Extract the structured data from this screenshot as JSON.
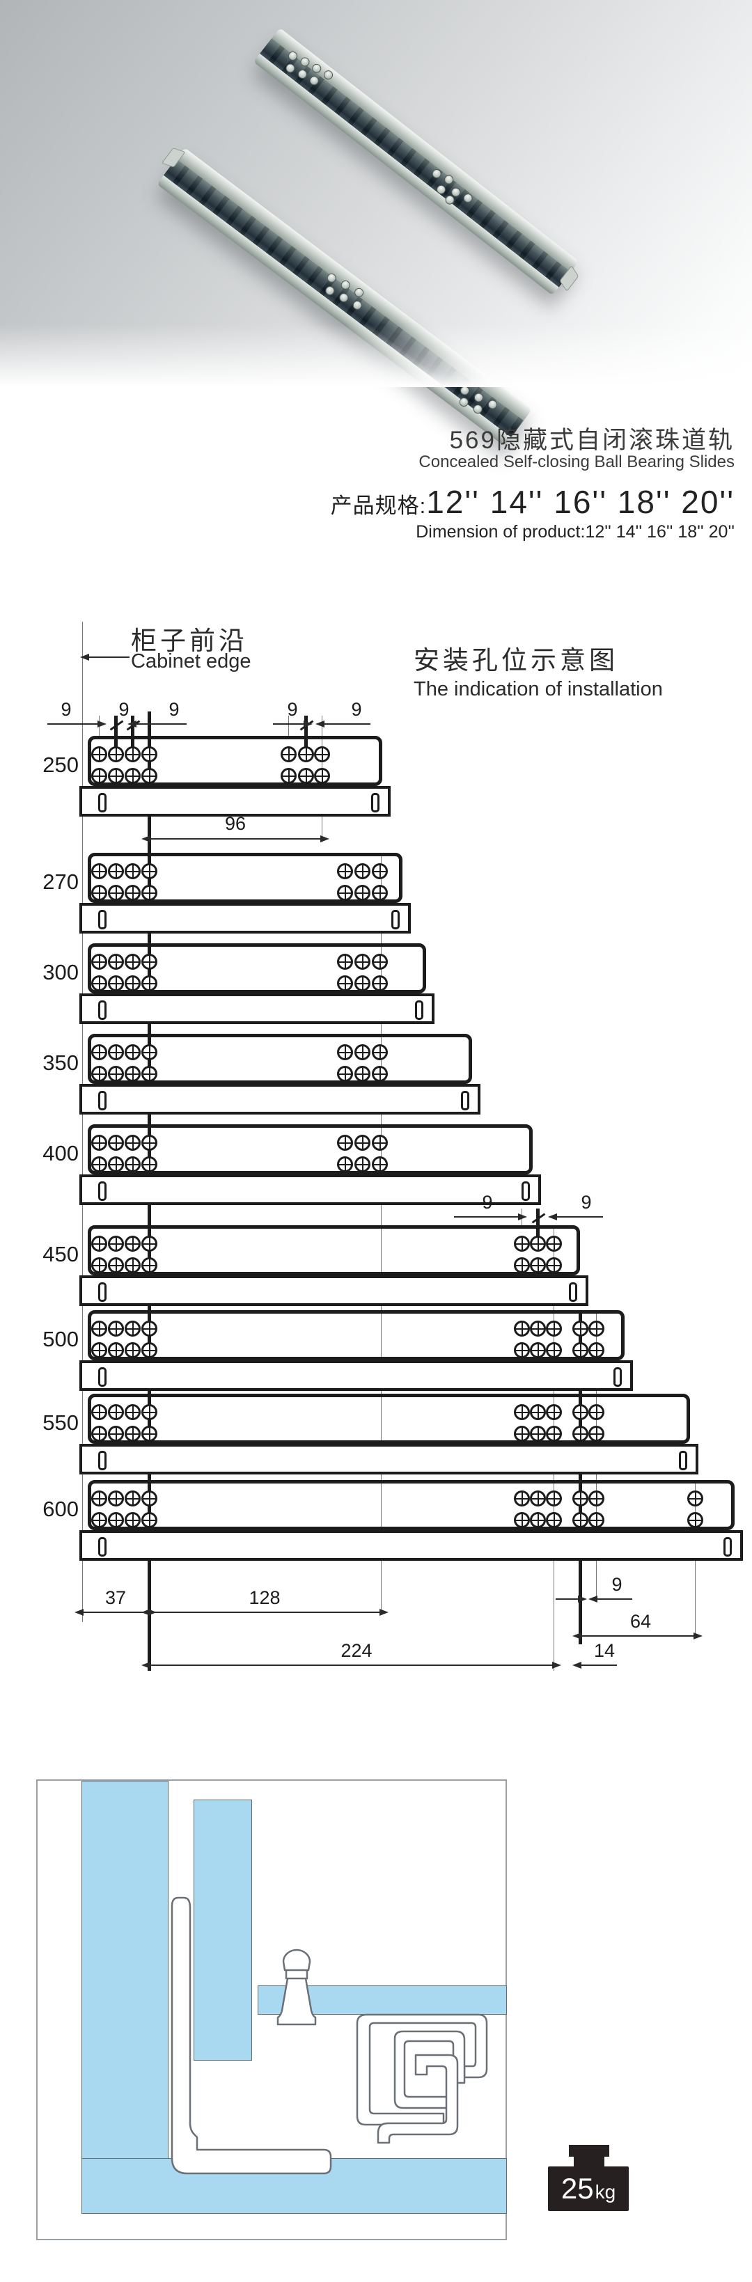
{
  "product": {
    "title_zh": "569隐藏式自闭滚珠道轨",
    "title_en": "Concealed Self-closing Ball Bearing Slides",
    "spec_label_zh": "产品规格:",
    "spec_sizes": "12'' 14'' 16'' 18'' 20''",
    "spec_label_en": "Dimension of product:",
    "spec_sizes_en": "12'' 14'' 16'' 18'' 20''"
  },
  "installation": {
    "cabinet_edge_zh": "柜子前沿",
    "cabinet_edge_en": "Cabinet edge",
    "heading_zh": "安装孔位示意图",
    "heading_en": "The indication of installation",
    "rows": [
      {
        "label": "250",
        "left_holes": 4,
        "right_groups": [
          3
        ]
      },
      {
        "label": "270",
        "left_holes": 4,
        "right_groups": [
          3
        ]
      },
      {
        "label": "300",
        "left_holes": 4,
        "right_groups": [
          3
        ]
      },
      {
        "label": "350",
        "left_holes": 4,
        "right_groups": [
          3
        ]
      },
      {
        "label": "400",
        "left_holes": 4,
        "right_groups": [
          3
        ]
      },
      {
        "label": "450",
        "left_holes": 4,
        "right_groups": [
          3
        ]
      },
      {
        "label": "500",
        "left_holes": 4,
        "right_groups": [
          3,
          2
        ]
      },
      {
        "label": "550",
        "left_holes": 4,
        "right_groups": [
          3,
          2
        ]
      },
      {
        "label": "600",
        "left_holes": 4,
        "right_groups": [
          3,
          2,
          1
        ]
      }
    ],
    "dims": {
      "nine": "9",
      "ninety_six": "96",
      "thirty_seven": "37",
      "one_twenty_eight": "128",
      "two_twenty_four": "224",
      "fourteen": "14",
      "sixty_four": "64"
    }
  },
  "load_rating": {
    "value": "25",
    "unit": "kg"
  }
}
